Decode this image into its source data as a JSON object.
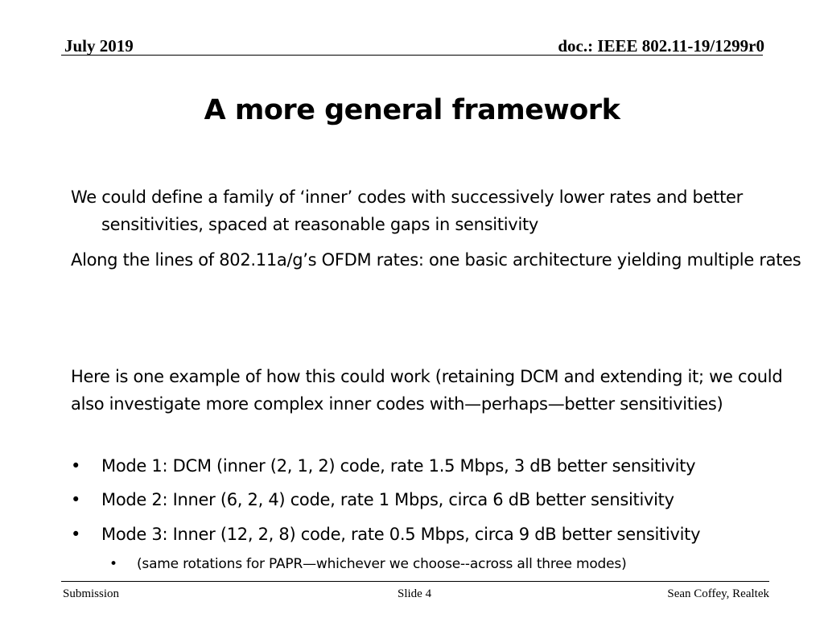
{
  "header": {
    "date": "July 2019",
    "doc_id": "doc.: IEEE 802.11-19/1299r0"
  },
  "title": "A more general framework",
  "paragraphs": [
    "We could define a family of ‘inner’ codes with successively lower rates and better sensitivities, spaced at reasonable gaps in sensitivity",
    "Along the lines of 802.11a/g’s OFDM rates: one basic architecture yielding multiple rates",
    "Here is one example of how this could work (retaining DCM and extending it; we could also investigate more complex inner codes with—perhaps—better sensitivities)"
  ],
  "bullets": [
    "Mode 1: DCM (inner (2, 1, 2) code, rate 1.5 Mbps, 3 dB better sensitivity",
    "Mode 2: Inner (6, 2, 4) code, rate 1 Mbps, circa 6 dB better sensitivity",
    "Mode 3: Inner (12, 2, 8) code, rate 0.5 Mbps, circa 9 dB better sensitivity"
  ],
  "sub_bullets": [
    "(same rotations for PAPR—whichever we choose--across all three modes)"
  ],
  "bullet_glyph": "•",
  "footer": {
    "left": "Submission",
    "center": "Slide 4",
    "right": "Sean Coffey, Realtek"
  }
}
